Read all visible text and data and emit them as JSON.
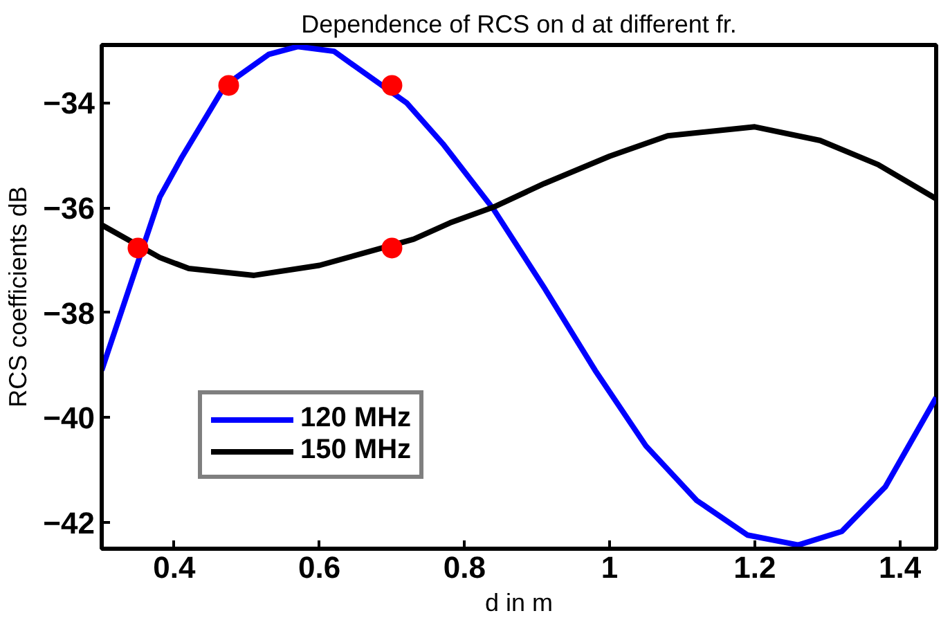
{
  "chart_data": {
    "type": "line",
    "title": "Dependence of RCS on d at different fr.",
    "xlabel": "d in m",
    "ylabel": "RCS coefficients dB",
    "xlim": [
      0.3,
      1.45
    ],
    "ylim": [
      -42.5,
      -32.9
    ],
    "xticks": [
      0.4,
      0.6,
      0.8,
      1,
      1.2,
      1.4
    ],
    "yticks": [
      -42,
      -40,
      -38,
      -36,
      -34
    ],
    "grid": false,
    "legend": "bottom left",
    "marker": "none",
    "line_style": "solid",
    "series": [
      {
        "name": "120 MHz",
        "color": "#0000ff",
        "x": [
          0.3,
          0.38,
          0.41,
          0.47,
          0.53,
          0.57,
          0.62,
          0.72,
          0.77,
          0.84,
          0.91,
          0.98,
          1.05,
          1.12,
          1.19,
          1.26,
          1.32,
          1.38,
          1.45
        ],
        "values": [
          -39.1,
          -35.8,
          -35.05,
          -33.67,
          -33.08,
          -32.93,
          -33.02,
          -34.0,
          -34.78,
          -36.03,
          -37.53,
          -39.1,
          -40.54,
          -41.58,
          -42.24,
          -42.43,
          -42.17,
          -41.32,
          -39.62
        ]
      },
      {
        "name": "150 MHz",
        "color": "#000000",
        "x": [
          0.3,
          0.38,
          0.42,
          0.51,
          0.6,
          0.73,
          0.78,
          0.84,
          0.91,
          1.0,
          1.08,
          1.2,
          1.29,
          1.37,
          1.45
        ],
        "values": [
          -36.33,
          -36.95,
          -37.16,
          -37.29,
          -37.1,
          -36.6,
          -36.29,
          -35.99,
          -35.54,
          -35.02,
          -34.63,
          -34.46,
          -34.72,
          -35.18,
          -35.83
        ]
      },
      {
        "type": "scatter",
        "marker": "circle",
        "color": "#ff0000",
        "x": [
          0.35,
          0.475,
          0.7,
          0.7
        ],
        "values": [
          -36.77,
          -33.67,
          -33.67,
          -36.77
        ]
      }
    ]
  }
}
